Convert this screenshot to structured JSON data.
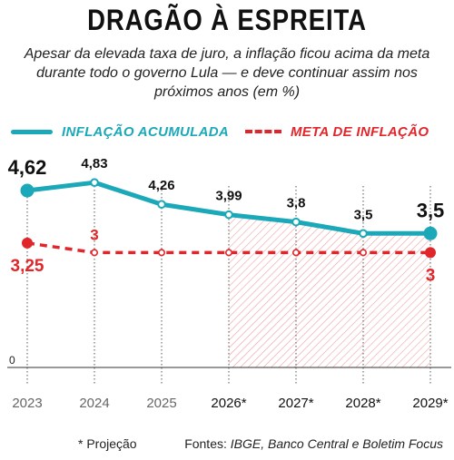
{
  "header": {
    "title": "DRAGÃO À ESPREITA",
    "subtitle": "Apesar da elevada taxa de juro, a inflação ficou acima da meta durante todo o governo Lula — e deve continuar assim nos próximos anos (em %)"
  },
  "colors": {
    "inflation": "#1ba8b8",
    "target": "#e0262b",
    "hatch": "#f0a0a0"
  },
  "chart_data": {
    "type": "line",
    "categories": [
      "2023",
      "2024",
      "2025",
      "2026*",
      "2027*",
      "2028*",
      "2029*"
    ],
    "ylim": [
      0,
      5.4
    ],
    "y_tick_labels": [
      "0"
    ],
    "series": [
      {
        "name": "INFLAÇÃO ACUMULADA",
        "values": [
          4.62,
          4.83,
          4.26,
          3.99,
          3.8,
          3.5,
          3.5
        ],
        "labels": [
          "4,62",
          "4,83",
          "4,26",
          "3,99",
          "3,8",
          "3,5",
          "3,5"
        ]
      },
      {
        "name": "META DE INFLAÇÃO",
        "values": [
          3.25,
          3,
          3,
          3,
          3,
          3,
          3
        ],
        "labels": [
          "3,25",
          "3",
          "",
          "",
          "",
          "",
          "3"
        ]
      }
    ],
    "shaded_region": {
      "from": "2026*",
      "to": "2029*"
    },
    "grid": "vertical dotted",
    "legend": "top"
  },
  "footer": {
    "footnote": "* Projeção",
    "sources_prefix": "Fontes: ",
    "sources_names": "IBGE, Banco Central e Boletim Focus"
  }
}
